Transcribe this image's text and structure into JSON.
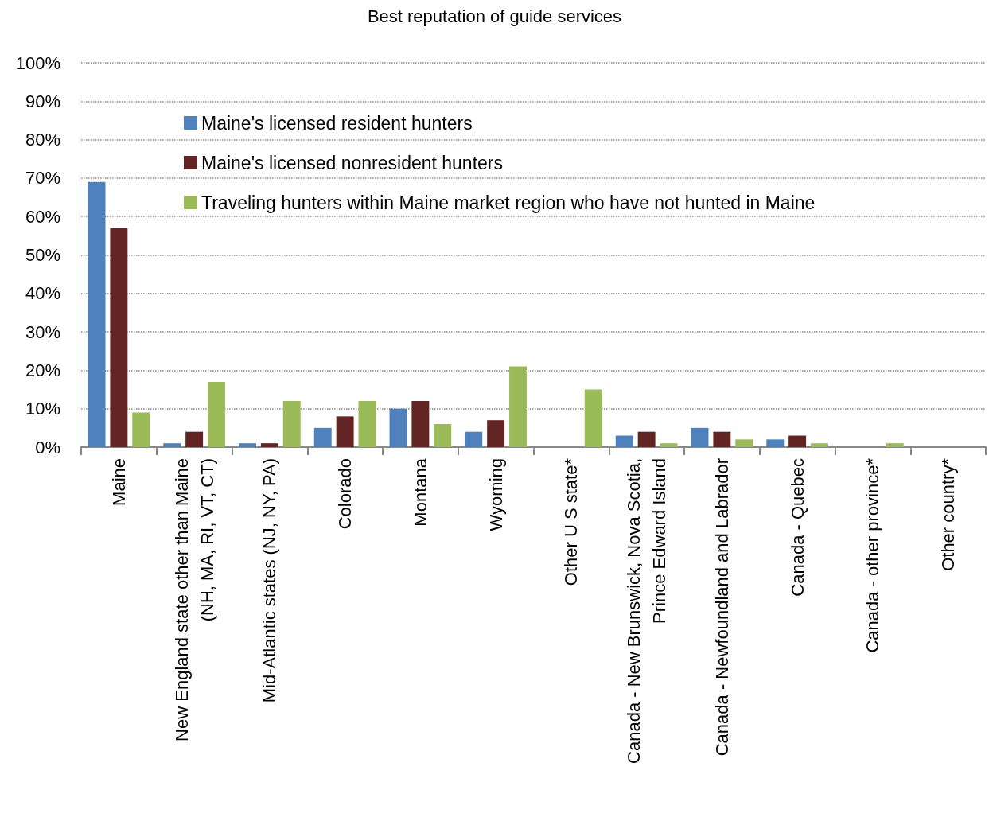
{
  "chart_data": {
    "type": "bar",
    "title": "Best reputation of guide services",
    "categories": [
      "Maine",
      "New England state other than Maine\n(NH, MA, RI, VT, CT)",
      "Mid-Atlantic states (NJ, NY, PA)",
      "Colorado",
      "Montana",
      "Wyoming",
      "Other U S state*",
      "Canada - New Brunswick, Nova Scotia,\nPrince Edward Island",
      "Canada - Newfoundland and Labrador",
      "Canada - Quebec",
      "Canada - other province*",
      "Other country*"
    ],
    "series": [
      {
        "name": "Maine's licensed resident hunters",
        "color": "#4f81bd",
        "values": [
          69,
          1,
          1,
          5,
          10,
          4,
          0,
          3,
          5,
          2,
          0,
          0
        ]
      },
      {
        "name": "Maine's licensed nonresident hunters",
        "color": "#632523",
        "values": [
          57,
          4,
          1,
          8,
          12,
          7,
          0,
          4,
          4,
          3,
          0,
          0
        ]
      },
      {
        "name": "Traveling hunters within Maine market region who have not hunted in Maine",
        "color": "#9bbb59",
        "values": [
          9,
          17,
          12,
          12,
          6,
          21,
          15,
          1,
          2,
          1,
          1,
          0
        ]
      }
    ],
    "ylim": [
      0,
      100
    ],
    "yticks": [
      {
        "value": 0,
        "label": "0%"
      },
      {
        "value": 10,
        "label": "10%"
      },
      {
        "value": 20,
        "label": "20%"
      },
      {
        "value": 30,
        "label": "30%"
      },
      {
        "value": 40,
        "label": "40%"
      },
      {
        "value": 50,
        "label": "50%"
      },
      {
        "value": 60,
        "label": "60%"
      },
      {
        "value": 70,
        "label": "70%"
      },
      {
        "value": 80,
        "label": "80%"
      },
      {
        "value": 90,
        "label": "90%"
      },
      {
        "value": 100,
        "label": "100%"
      }
    ],
    "grid": "y",
    "legend": "top left"
  }
}
